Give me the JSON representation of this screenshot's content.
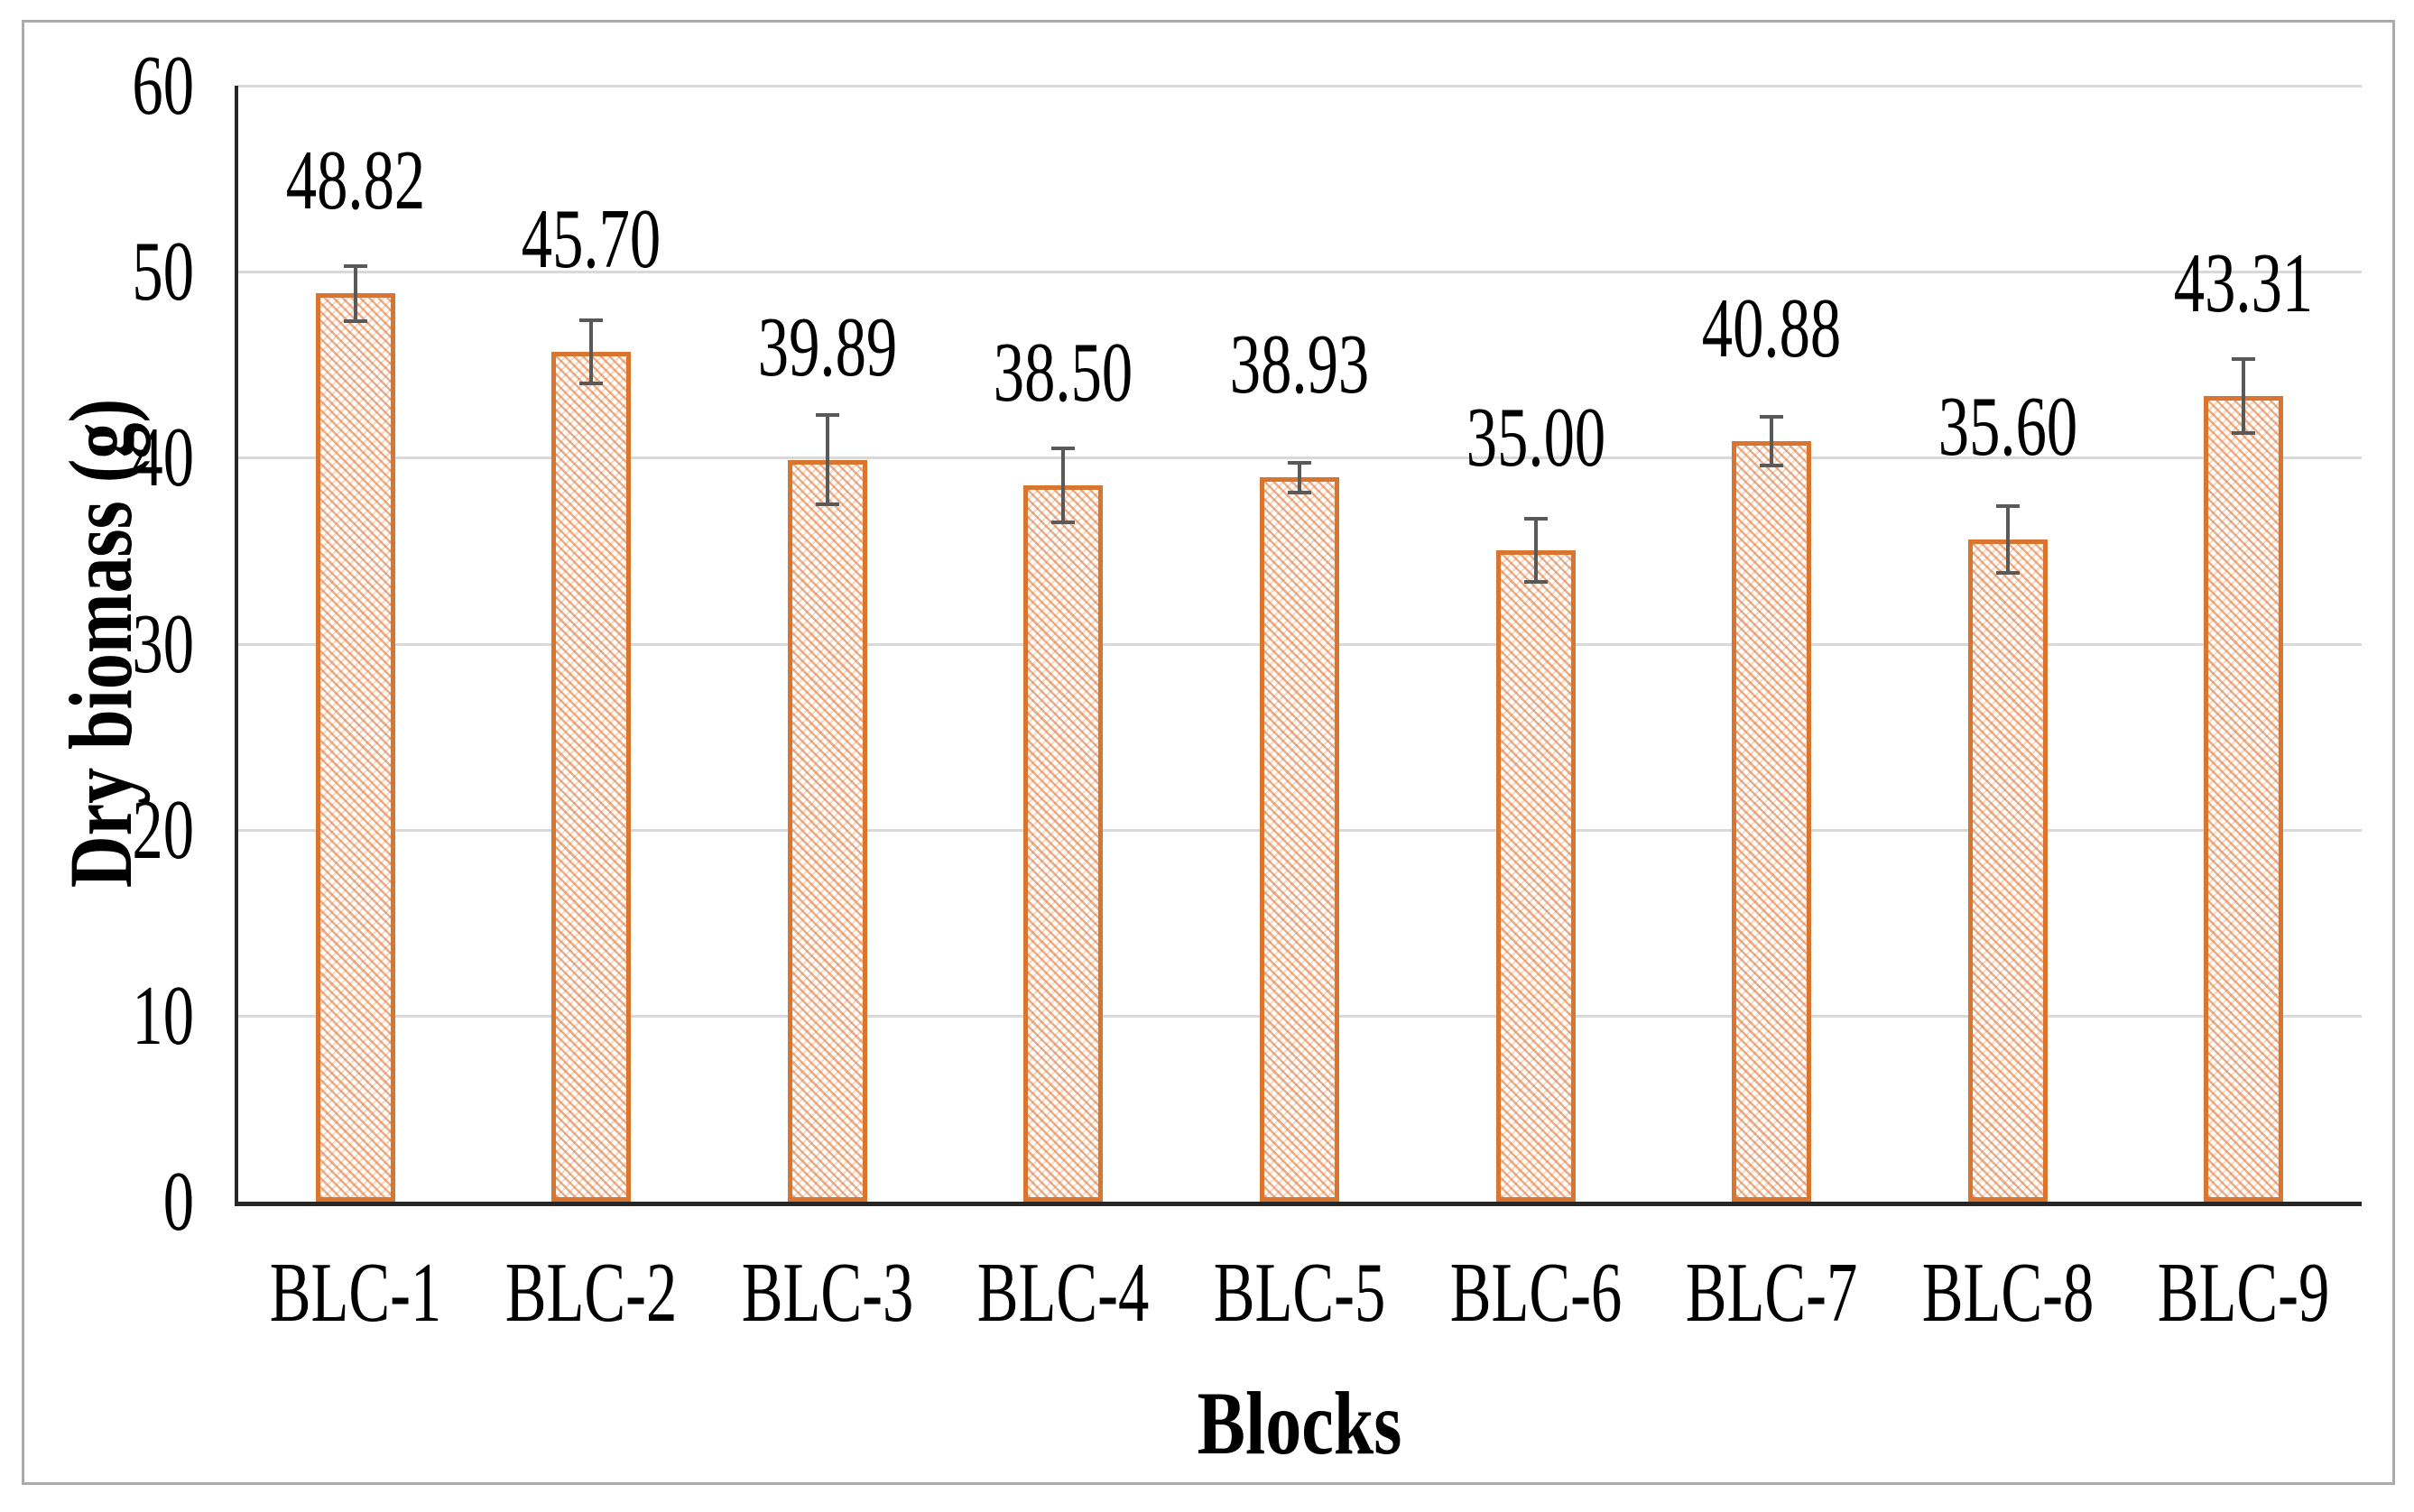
{
  "figure": {
    "background": "#ffffff",
    "border_color": "#ababab"
  },
  "chart_data": {
    "type": "bar",
    "title": "",
    "xlabel": "Blocks",
    "ylabel": "Dry biomass (g)",
    "categories": [
      "BLC-1",
      "BLC-2",
      "BLC-3",
      "BLC-4",
      "BLC-5",
      "BLC-6",
      "BLC-7",
      "BLC-8",
      "BLC-9"
    ],
    "values": [
      48.82,
      45.7,
      39.89,
      38.5,
      38.93,
      35.0,
      40.88,
      35.6,
      43.31
    ],
    "value_labels": [
      "48.82",
      "45.70",
      "39.89",
      "38.50",
      "38.93",
      "35.00",
      "40.88",
      "35.60",
      "43.31"
    ],
    "error_bars": [
      1.5,
      1.7,
      2.4,
      2.0,
      0.8,
      1.7,
      1.3,
      1.8,
      2.0
    ],
    "ylim": [
      0,
      60
    ],
    "yticks": [
      0,
      10,
      20,
      30,
      40,
      50,
      60
    ],
    "ytick_labels": [
      "0",
      "10",
      "20",
      "30",
      "40",
      "50",
      "60"
    ],
    "grid": "horizontal",
    "legend": "none",
    "colors": {
      "bar_hatch": "#df7a3a",
      "bar_border": "#d9752f",
      "error_bar": "#595959",
      "gridline": "#d9d9d9",
      "axis_line": "#262626",
      "text": "#000000"
    }
  }
}
